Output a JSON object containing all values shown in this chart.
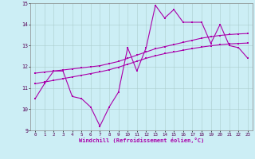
{
  "xlabel": "Windchill (Refroidissement éolien,°C)",
  "background_color": "#cceef5",
  "line_color": "#aa00aa",
  "grid_color": "#aacccc",
  "x_ticks": [
    0,
    1,
    2,
    3,
    4,
    5,
    6,
    7,
    8,
    9,
    10,
    11,
    12,
    13,
    14,
    15,
    16,
    17,
    18,
    19,
    20,
    21,
    22,
    23
  ],
  "ylim": [
    9,
    15
  ],
  "xlim": [
    -0.5,
    23.5
  ],
  "yticks": [
    9,
    10,
    11,
    12,
    13,
    14,
    15
  ],
  "curve1_x": [
    0,
    1,
    2,
    3,
    4,
    5,
    6,
    7,
    8,
    9,
    10,
    11,
    12,
    13,
    14,
    15,
    16,
    17,
    18,
    19,
    20,
    21,
    22,
    23
  ],
  "curve1_y": [
    10.5,
    11.2,
    11.8,
    11.8,
    10.6,
    10.5,
    10.1,
    9.2,
    10.1,
    10.8,
    12.9,
    11.8,
    12.9,
    14.9,
    14.3,
    14.7,
    14.1,
    14.1,
    14.1,
    13.1,
    14.0,
    13.0,
    12.9,
    12.4
  ],
  "curve2_x": [
    0,
    1,
    2,
    3,
    4,
    5,
    6,
    7,
    8,
    9,
    10,
    11,
    12,
    13,
    14,
    15,
    16,
    17,
    18,
    19,
    20,
    21,
    22,
    23
  ],
  "curve2_y": [
    11.7,
    11.75,
    11.8,
    11.85,
    11.9,
    11.95,
    12.0,
    12.05,
    12.15,
    12.25,
    12.4,
    12.55,
    12.7,
    12.85,
    12.95,
    13.05,
    13.15,
    13.25,
    13.35,
    13.42,
    13.48,
    13.52,
    13.55,
    13.57
  ],
  "curve3_x": [
    0,
    1,
    2,
    3,
    4,
    5,
    6,
    7,
    8,
    9,
    10,
    11,
    12,
    13,
    14,
    15,
    16,
    17,
    18,
    19,
    20,
    21,
    22,
    23
  ],
  "curve3_y": [
    11.2,
    11.28,
    11.36,
    11.44,
    11.52,
    11.6,
    11.68,
    11.76,
    11.86,
    11.98,
    12.12,
    12.26,
    12.4,
    12.52,
    12.62,
    12.7,
    12.78,
    12.86,
    12.93,
    12.99,
    13.04,
    13.08,
    13.1,
    13.12
  ]
}
